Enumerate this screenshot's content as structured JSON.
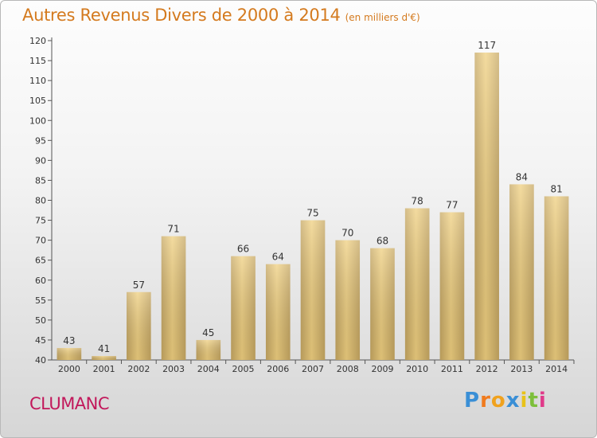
{
  "chart_data": {
    "type": "bar",
    "title": "Autres Revenus Divers de 2000 à 2014",
    "subtitle": "(en milliers d'€)",
    "categories": [
      "2000",
      "2001",
      "2002",
      "2003",
      "2004",
      "2005",
      "2006",
      "2007",
      "2008",
      "2009",
      "2010",
      "2011",
      "2012",
      "2013",
      "2014"
    ],
    "values": [
      43,
      41,
      57,
      71,
      45,
      66,
      64,
      75,
      70,
      68,
      78,
      77,
      117,
      84,
      81
    ],
    "ylim": [
      40,
      120
    ],
    "yticks": [
      40,
      45,
      50,
      55,
      60,
      65,
      70,
      75,
      80,
      85,
      90,
      95,
      100,
      105,
      110,
      115,
      120
    ],
    "grid": false,
    "bar_color": "#f0d080",
    "bar_color_dark": "#c6a762"
  },
  "footer": {
    "town": "CLUMANC",
    "logo_letters": [
      "P",
      "r",
      "o",
      "x",
      "i",
      "t",
      "i"
    ],
    "logo_colors": [
      "#3a8fd6",
      "#f07b1e",
      "#f0a21e",
      "#3a8fd6",
      "#e8c21a",
      "#7cbf3a",
      "#e03a8a"
    ]
  }
}
